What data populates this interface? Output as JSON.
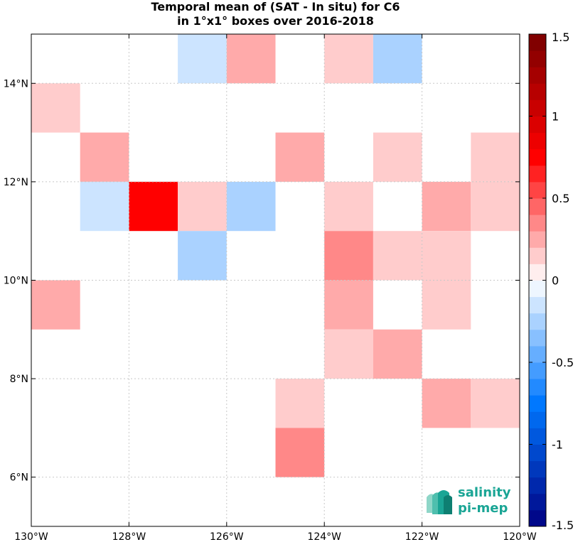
{
  "chart_data": {
    "type": "heatmap",
    "title": [
      "Temporal mean of (SAT - In situ) for C6",
      "in 1°x1° boxes over 2016-2018"
    ],
    "xlabel": "",
    "ylabel": "",
    "xlim": [
      -130,
      -120
    ],
    "ylim": [
      5,
      15
    ],
    "grid": true,
    "x_ticks": [
      -130,
      -128,
      -126,
      -124,
      -122,
      -120
    ],
    "x_tick_labels": [
      "130°W",
      "128°W",
      "126°W",
      "124°W",
      "122°W",
      "120°W"
    ],
    "y_ticks": [
      6,
      8,
      10,
      12,
      14
    ],
    "y_tick_labels": [
      "6°N",
      "8°N",
      "10°N",
      "12°N",
      "14°N"
    ],
    "colorbar": {
      "range": [
        -1.5,
        1.5
      ],
      "step": 0.1,
      "ticks": [
        1.5,
        1,
        0.5,
        0,
        -0.5,
        -1,
        -1.5
      ],
      "tick_labels": [
        "1.5",
        "1",
        "0.5",
        "0",
        "-0.5",
        "-1",
        "-1.5"
      ],
      "placement": "right"
    },
    "cells": [
      {
        "lon": -127,
        "lat": 14,
        "value": -0.15
      },
      {
        "lon": -126,
        "lat": 14,
        "value": 0.25
      },
      {
        "lon": -124,
        "lat": 14,
        "value": 0.15
      },
      {
        "lon": -123,
        "lat": 14,
        "value": -0.25
      },
      {
        "lon": -130,
        "lat": 13,
        "value": 0.15
      },
      {
        "lon": -129,
        "lat": 12,
        "value": 0.25
      },
      {
        "lon": -125,
        "lat": 12,
        "value": 0.25
      },
      {
        "lon": -123,
        "lat": 12,
        "value": 0.15
      },
      {
        "lon": -121,
        "lat": 12,
        "value": 0.15
      },
      {
        "lon": -129,
        "lat": 11,
        "value": -0.15
      },
      {
        "lon": -128,
        "lat": 11,
        "value": 0.75
      },
      {
        "lon": -127,
        "lat": 11,
        "value": 0.15
      },
      {
        "lon": -126,
        "lat": 11,
        "value": -0.25
      },
      {
        "lon": -124,
        "lat": 11,
        "value": 0.15
      },
      {
        "lon": -122,
        "lat": 11,
        "value": 0.25
      },
      {
        "lon": -121,
        "lat": 11,
        "value": 0.15
      },
      {
        "lon": -127,
        "lat": 10,
        "value": -0.25
      },
      {
        "lon": -124,
        "lat": 10,
        "value": 0.35
      },
      {
        "lon": -123,
        "lat": 10,
        "value": 0.15
      },
      {
        "lon": -122,
        "lat": 10,
        "value": 0.15
      },
      {
        "lon": -130,
        "lat": 9,
        "value": 0.25
      },
      {
        "lon": -124,
        "lat": 9,
        "value": 0.25
      },
      {
        "lon": -122,
        "lat": 9,
        "value": 0.15
      },
      {
        "lon": -124,
        "lat": 8,
        "value": 0.15
      },
      {
        "lon": -123,
        "lat": 8,
        "value": 0.25
      },
      {
        "lon": -125,
        "lat": 7,
        "value": 0.15
      },
      {
        "lon": -122,
        "lat": 7,
        "value": 0.25
      },
      {
        "lon": -121,
        "lat": 7,
        "value": 0.15
      },
      {
        "lon": -125,
        "lat": 6,
        "value": 0.35
      }
    ]
  },
  "logo": {
    "line1": "salinity",
    "line2": "pi-mep"
  },
  "colors": {
    "logo_teal": "#1aa595",
    "grid": "#c8c8c8"
  }
}
